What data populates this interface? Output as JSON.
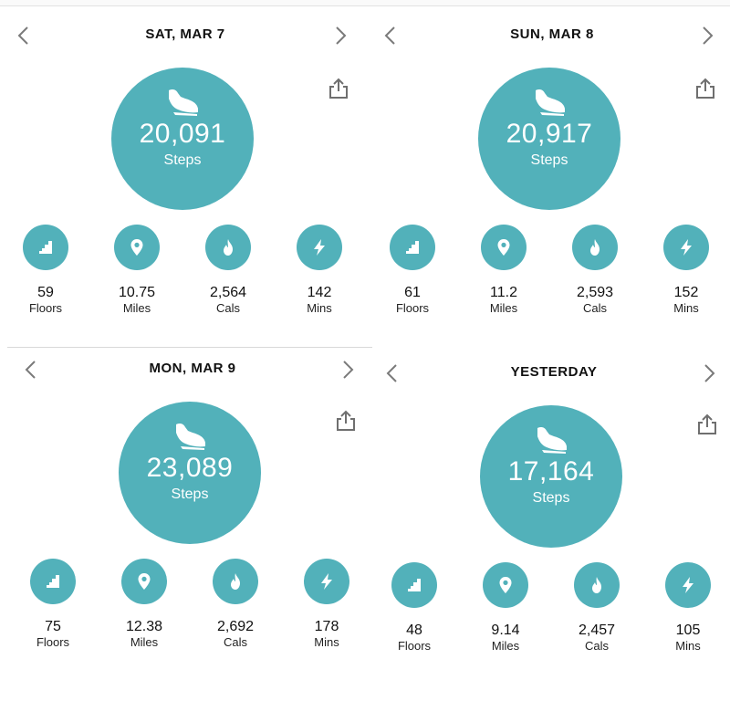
{
  "colors": {
    "accent": "#52b1ba",
    "text": "#111111",
    "chevron": "#7a7a7a"
  },
  "panels": [
    {
      "date": "SAT, MAR 7",
      "steps": {
        "value": "20,091",
        "label": "Steps"
      },
      "stats": [
        {
          "icon": "stairs-icon",
          "value": "59",
          "unit": "Floors"
        },
        {
          "icon": "location-pin-icon",
          "value": "10.75",
          "unit": "Miles"
        },
        {
          "icon": "flame-icon",
          "value": "2,564",
          "unit": "Cals"
        },
        {
          "icon": "lightning-bolt-icon",
          "value": "142",
          "unit": "Mins"
        }
      ]
    },
    {
      "date": "SUN, MAR 8",
      "steps": {
        "value": "20,917",
        "label": "Steps"
      },
      "stats": [
        {
          "icon": "stairs-icon",
          "value": "61",
          "unit": "Floors"
        },
        {
          "icon": "location-pin-icon",
          "value": "11.2",
          "unit": "Miles"
        },
        {
          "icon": "flame-icon",
          "value": "2,593",
          "unit": "Cals"
        },
        {
          "icon": "lightning-bolt-icon",
          "value": "152",
          "unit": "Mins"
        }
      ]
    },
    {
      "date": "MON, MAR 9",
      "steps": {
        "value": "23,089",
        "label": "Steps"
      },
      "stats": [
        {
          "icon": "stairs-icon",
          "value": "75",
          "unit": "Floors"
        },
        {
          "icon": "location-pin-icon",
          "value": "12.38",
          "unit": "Miles"
        },
        {
          "icon": "flame-icon",
          "value": "2,692",
          "unit": "Cals"
        },
        {
          "icon": "lightning-bolt-icon",
          "value": "178",
          "unit": "Mins"
        }
      ]
    },
    {
      "date": "YESTERDAY",
      "steps": {
        "value": "17,164",
        "label": "Steps"
      },
      "stats": [
        {
          "icon": "stairs-icon",
          "value": "48",
          "unit": "Floors"
        },
        {
          "icon": "location-pin-icon",
          "value": "9.14",
          "unit": "Miles"
        },
        {
          "icon": "flame-icon",
          "value": "2,457",
          "unit": "Cals"
        },
        {
          "icon": "lightning-bolt-icon",
          "value": "105",
          "unit": "Mins"
        }
      ]
    }
  ]
}
